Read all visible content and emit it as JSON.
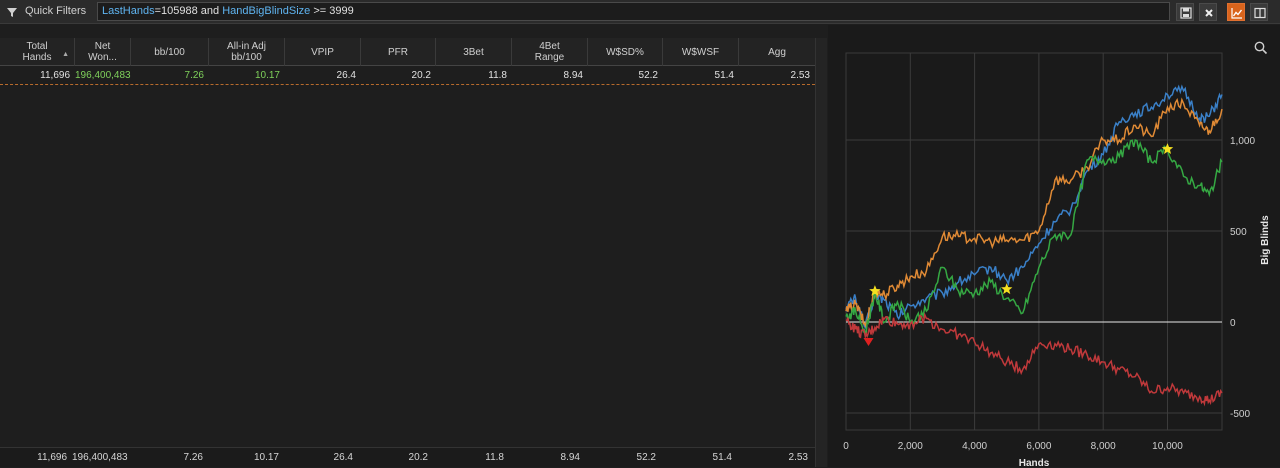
{
  "toolbar": {
    "quick_filters_label": "Quick Filters",
    "filter_parts": {
      "kw1": "LastHands",
      "rest1": "=105988 and ",
      "kw2": "HandBigBlindSize",
      "rest2": " >= 3999"
    },
    "accent_color": "#d9641c"
  },
  "grid": {
    "columns": [
      {
        "label": "Total\nHands",
        "sorted": true
      },
      {
        "label": "Net\nWon..."
      },
      {
        "label": "bb/100"
      },
      {
        "label": "All-in Adj\nbb/100"
      },
      {
        "label": "VPIP"
      },
      {
        "label": "PFR"
      },
      {
        "label": "3Bet"
      },
      {
        "label": "4Bet\nRange"
      },
      {
        "label": "W$SD%"
      },
      {
        "label": "W$WSF"
      },
      {
        "label": "Agg"
      }
    ],
    "row": [
      "11,696",
      "196,400,483",
      "7.26",
      "10.17",
      "26.4",
      "20.2",
      "11.8",
      "8.94",
      "52.2",
      "51.4",
      "2.53"
    ],
    "totals": [
      "11,696",
      "196,400,483",
      "7.26",
      "10.17",
      "26.4",
      "20.2",
      "11.8",
      "8.94",
      "52.2",
      "51.4",
      "2.53"
    ]
  },
  "chart_data": {
    "type": "line",
    "xlabel": "Hands",
    "ylabel": "Big Blinds",
    "xlim": [
      0,
      11696
    ],
    "ylim": [
      -500,
      1300
    ],
    "x_ticks": [
      "0",
      "2,000",
      "4,000",
      "6,000",
      "8,000",
      "10,000"
    ],
    "y_ticks": [
      "1,000",
      "500",
      "0",
      "-500"
    ],
    "series": [
      {
        "color": "#3a80c8",
        "points": [
          [
            0,
            80
          ],
          [
            300,
            130
          ],
          [
            600,
            -30
          ],
          [
            900,
            150
          ],
          [
            1200,
            120
          ],
          [
            1600,
            30
          ],
          [
            2000,
            90
          ],
          [
            2500,
            130
          ],
          [
            3000,
            160
          ],
          [
            3500,
            220
          ],
          [
            4000,
            260
          ],
          [
            4500,
            300
          ],
          [
            5000,
            230
          ],
          [
            5500,
            300
          ],
          [
            6000,
            430
          ],
          [
            6500,
            550
          ],
          [
            7000,
            620
          ],
          [
            7500,
            830
          ],
          [
            8000,
            920
          ],
          [
            8500,
            1100
          ],
          [
            9000,
            1150
          ],
          [
            9500,
            1180
          ],
          [
            10000,
            1250
          ],
          [
            10500,
            1270
          ],
          [
            11000,
            1120
          ],
          [
            11300,
            1130
          ],
          [
            11696,
            1250
          ]
        ]
      },
      {
        "color": "#e08a35",
        "points": [
          [
            0,
            60
          ],
          [
            300,
            100
          ],
          [
            600,
            -20
          ],
          [
            900,
            170
          ],
          [
            1200,
            150
          ],
          [
            1600,
            200
          ],
          [
            2000,
            250
          ],
          [
            2500,
            280
          ],
          [
            3000,
            470
          ],
          [
            3500,
            470
          ],
          [
            4000,
            460
          ],
          [
            4500,
            440
          ],
          [
            5000,
            450
          ],
          [
            5500,
            450
          ],
          [
            6000,
            500
          ],
          [
            6500,
            780
          ],
          [
            7000,
            780
          ],
          [
            7500,
            850
          ],
          [
            8000,
            1000
          ],
          [
            8500,
            1000
          ],
          [
            9000,
            1080
          ],
          [
            9500,
            1020
          ],
          [
            10000,
            1180
          ],
          [
            10500,
            1200
          ],
          [
            11000,
            1080
          ],
          [
            11300,
            1050
          ],
          [
            11696,
            1170
          ]
        ]
      },
      {
        "color": "#35a843",
        "points": [
          [
            0,
            30
          ],
          [
            300,
            60
          ],
          [
            600,
            -60
          ],
          [
            900,
            160
          ],
          [
            1200,
            0
          ],
          [
            1600,
            110
          ],
          [
            2000,
            0
          ],
          [
            2500,
            60
          ],
          [
            3000,
            300
          ],
          [
            3500,
            170
          ],
          [
            4000,
            160
          ],
          [
            4500,
            220
          ],
          [
            5000,
            130
          ],
          [
            5500,
            50
          ],
          [
            6000,
            300
          ],
          [
            6500,
            480
          ],
          [
            7000,
            480
          ],
          [
            7500,
            890
          ],
          [
            8000,
            890
          ],
          [
            8500,
            910
          ],
          [
            9000,
            1000
          ],
          [
            9500,
            880
          ],
          [
            10000,
            950
          ],
          [
            10500,
            800
          ],
          [
            11000,
            750
          ],
          [
            11300,
            700
          ],
          [
            11696,
            880
          ]
        ]
      },
      {
        "color": "#c0393b",
        "points": [
          [
            0,
            10
          ],
          [
            300,
            -40
          ],
          [
            600,
            -80
          ],
          [
            900,
            -30
          ],
          [
            1200,
            20
          ],
          [
            1600,
            -10
          ],
          [
            2000,
            -10
          ],
          [
            2500,
            20
          ],
          [
            3000,
            -40
          ],
          [
            3500,
            -70
          ],
          [
            4000,
            -110
          ],
          [
            4500,
            -170
          ],
          [
            5000,
            -220
          ],
          [
            5500,
            -260
          ],
          [
            6000,
            -120
          ],
          [
            6500,
            -120
          ],
          [
            7000,
            -150
          ],
          [
            7500,
            -180
          ],
          [
            8000,
            -220
          ],
          [
            8500,
            -260
          ],
          [
            9000,
            -300
          ],
          [
            9500,
            -380
          ],
          [
            10000,
            -360
          ],
          [
            10500,
            -390
          ],
          [
            11000,
            -410
          ],
          [
            11300,
            -430
          ],
          [
            11696,
            -390
          ]
        ]
      }
    ],
    "markers": [
      {
        "type": "star",
        "color": "#f5e020",
        "x": 900,
        "y": 170
      },
      {
        "type": "star",
        "color": "#f5e020",
        "x": 5000,
        "y": 180
      },
      {
        "type": "star",
        "color": "#f5e020",
        "x": 10000,
        "y": 950
      },
      {
        "type": "triangle-down",
        "color": "#e02020",
        "x": 700,
        "y": -110
      }
    ]
  }
}
